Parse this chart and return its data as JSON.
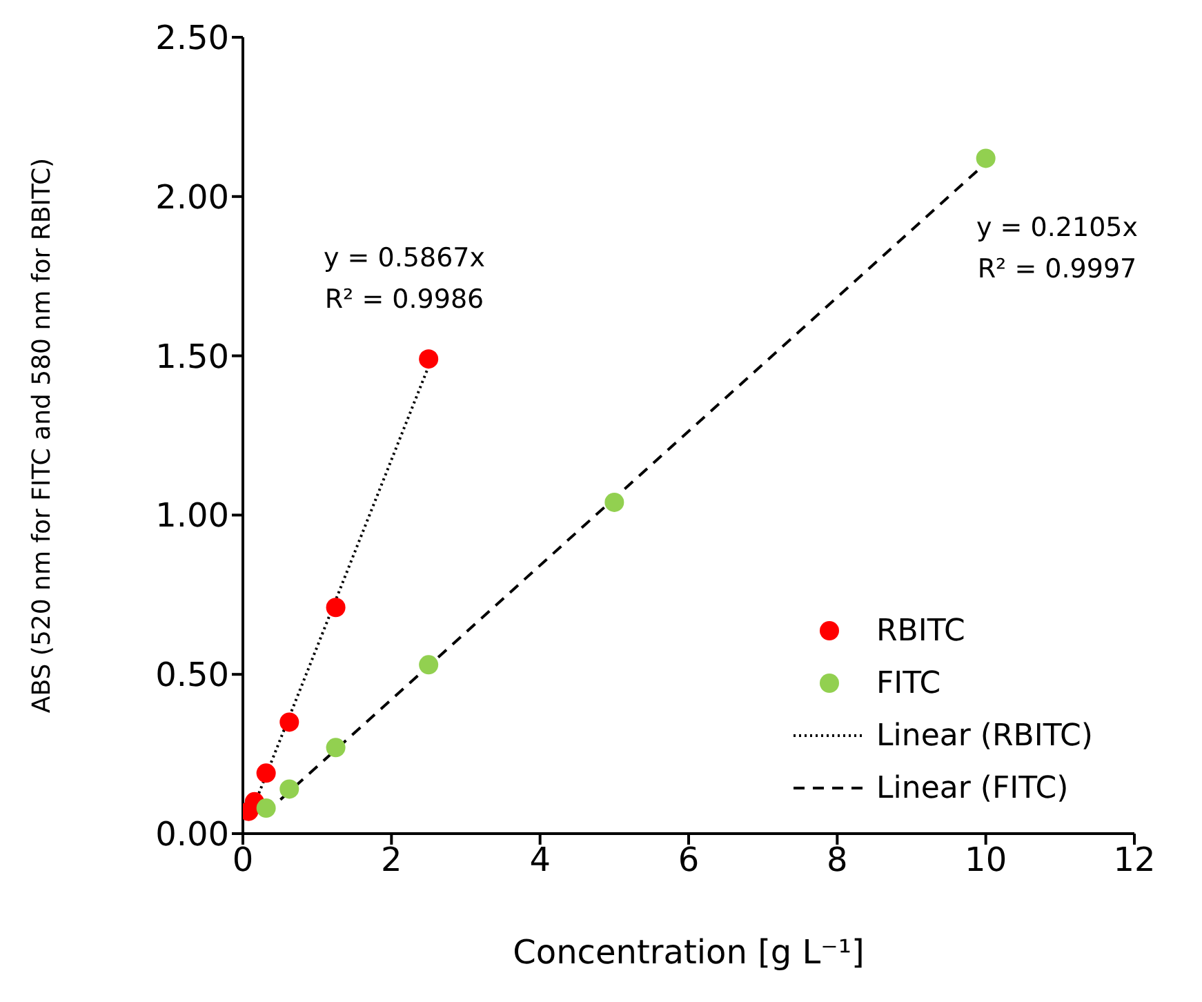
{
  "chart_data": {
    "type": "scatter",
    "xlabel": "Concentration [g L⁻¹]",
    "ylabel": "ABS (520 nm for FITC and 580 nm for RBITC)",
    "xlim": [
      0,
      12
    ],
    "xticks": [
      0,
      2,
      4,
      6,
      8,
      10,
      12
    ],
    "ylim": [
      0,
      2.5
    ],
    "yticks": [
      {
        "value": 0,
        "label": "0.00"
      },
      {
        "value": 0.5,
        "label": "0.50"
      },
      {
        "value": 1,
        "label": "1.00"
      },
      {
        "value": 1.5,
        "label": "1.50"
      },
      {
        "value": 2,
        "label": "2.00"
      },
      {
        "value": 2.5,
        "label": "2.50"
      }
    ],
    "legend": "bottom right",
    "series": [
      {
        "name": "RBITC",
        "type": "scatter",
        "marker": "circle",
        "color": "#ff0000",
        "x": [
          0.078,
          0.156,
          0.3125,
          0.625,
          1.25,
          2.5
        ],
        "values": [
          0.07,
          0.1,
          0.19,
          0.35,
          0.71,
          1.49
        ]
      },
      {
        "name": "FITC",
        "type": "scatter",
        "marker": "circle",
        "color": "#92d050",
        "x": [
          0.3125,
          0.625,
          1.25,
          2.5,
          5,
          10
        ],
        "values": [
          0.08,
          0.14,
          0.27,
          0.53,
          1.04,
          2.12
        ]
      },
      {
        "name": "Linear (RBITC)",
        "type": "line",
        "marker": "none",
        "line_style": "dotted",
        "color": "#000000",
        "x": [
          0.078,
          2.5
        ],
        "values": [
          0.046,
          1.467
        ]
      },
      {
        "name": "Linear (FITC)",
        "type": "line",
        "marker": "none",
        "line_style": "dashed",
        "color": "#000000",
        "x": [
          0.3125,
          10
        ],
        "values": [
          0.066,
          2.105
        ]
      }
    ],
    "annotations": [
      "y = 0.5867x",
      "R² = 0.9986",
      "y = 0.2105x",
      "R² = 0.9997"
    ]
  }
}
